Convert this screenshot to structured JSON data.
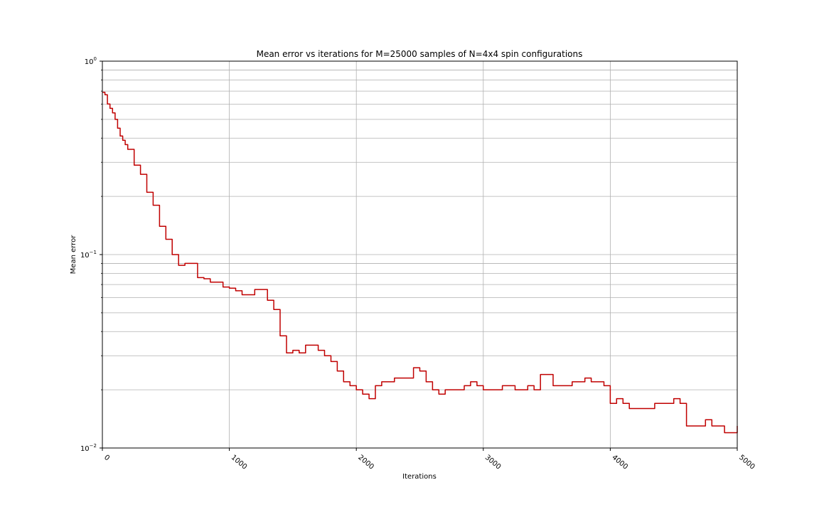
{
  "chart_data": {
    "type": "line",
    "title": "Mean error vs iterations for M=25000 samples of N=4x4 spin configurations",
    "xlabel": "Iterations",
    "ylabel": "Mean error",
    "xlim": [
      0,
      5000
    ],
    "ylim": [
      0.01,
      1
    ],
    "yscale": "log",
    "grid": true,
    "x_ticks": [
      "0",
      "1000",
      "2000",
      "3000",
      "4000",
      "5000"
    ],
    "y_ticks": [
      {
        "base": "10",
        "exp": "−2"
      },
      {
        "base": "10",
        "exp": "−1"
      },
      {
        "base": "10",
        "exp": "0"
      }
    ],
    "series": [
      {
        "color": "#c00000",
        "x": [
          0,
          20,
          40,
          60,
          80,
          100,
          120,
          140,
          160,
          180,
          200,
          250,
          300,
          350,
          400,
          450,
          500,
          550,
          600,
          650,
          700,
          750,
          800,
          850,
          900,
          950,
          1000,
          1050,
          1100,
          1150,
          1200,
          1250,
          1300,
          1350,
          1400,
          1450,
          1500,
          1550,
          1600,
          1650,
          1700,
          1750,
          1800,
          1850,
          1900,
          1950,
          2000,
          2050,
          2100,
          2150,
          2200,
          2250,
          2300,
          2350,
          2400,
          2450,
          2500,
          2550,
          2600,
          2650,
          2700,
          2750,
          2800,
          2850,
          2900,
          2950,
          3000,
          3050,
          3100,
          3150,
          3200,
          3250,
          3300,
          3350,
          3400,
          3450,
          3500,
          3550,
          3600,
          3650,
          3700,
          3750,
          3800,
          3850,
          3900,
          3950,
          4000,
          4050,
          4100,
          4150,
          4200,
          4250,
          4300,
          4350,
          4400,
          4450,
          4500,
          4550,
          4600,
          4650,
          4700,
          4750,
          4800,
          4850,
          4900,
          4950,
          5000
        ],
        "y": [
          0.69,
          0.67,
          0.6,
          0.57,
          0.54,
          0.5,
          0.45,
          0.41,
          0.39,
          0.37,
          0.35,
          0.29,
          0.26,
          0.21,
          0.18,
          0.14,
          0.12,
          0.1,
          0.088,
          0.09,
          0.09,
          0.076,
          0.075,
          0.072,
          0.072,
          0.068,
          0.067,
          0.065,
          0.062,
          0.062,
          0.066,
          0.066,
          0.058,
          0.052,
          0.038,
          0.031,
          0.032,
          0.031,
          0.034,
          0.034,
          0.032,
          0.03,
          0.028,
          0.025,
          0.022,
          0.021,
          0.02,
          0.019,
          0.018,
          0.021,
          0.022,
          0.022,
          0.023,
          0.023,
          0.023,
          0.026,
          0.025,
          0.022,
          0.02,
          0.019,
          0.02,
          0.02,
          0.02,
          0.021,
          0.022,
          0.021,
          0.02,
          0.02,
          0.02,
          0.021,
          0.021,
          0.02,
          0.02,
          0.021,
          0.02,
          0.024,
          0.024,
          0.021,
          0.021,
          0.021,
          0.022,
          0.022,
          0.023,
          0.022,
          0.022,
          0.021,
          0.017,
          0.018,
          0.017,
          0.016,
          0.016,
          0.016,
          0.016,
          0.017,
          0.017,
          0.017,
          0.018,
          0.017,
          0.013,
          0.013,
          0.013,
          0.014,
          0.013,
          0.013,
          0.012,
          0.012,
          0.013
        ]
      }
    ]
  }
}
